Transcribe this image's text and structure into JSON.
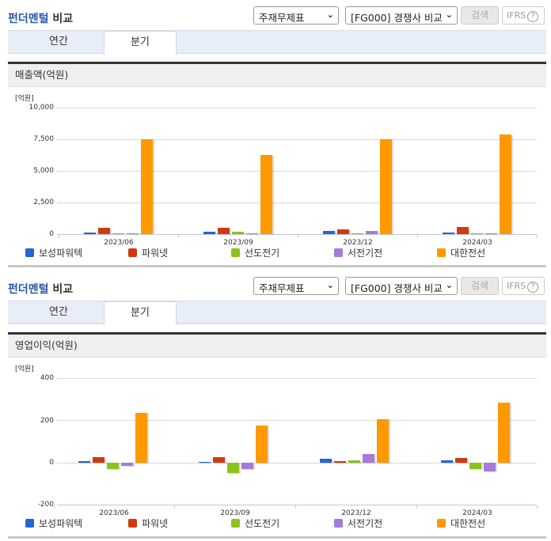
{
  "sections": [
    {
      "title_blue": "펀더멘털",
      "title_rest": " 비교",
      "select1": "주재무제표",
      "select2": "[FG000] 경쟁사 비교",
      "search_label": "검색",
      "ifrs_label": "IFRS",
      "ifrs_help": "?",
      "tabs": [
        {
          "label": "연간",
          "active": false
        },
        {
          "label": "분기",
          "active": true
        }
      ],
      "chart_title": "매출액(억원)",
      "unit": "[억원]",
      "yticks": [
        "10,000",
        "7,500",
        "5,000",
        "2,500",
        "0"
      ],
      "xlabels": [
        "2023/06",
        "2023/09",
        "2023/12",
        "2024/03"
      ]
    },
    {
      "title_blue": "펀더멘털",
      "title_rest": " 비교",
      "select1": "주재무제표",
      "select2": "[FG000] 경쟁사 비교",
      "search_label": "검색",
      "ifrs_label": "IFRS",
      "ifrs_help": "?",
      "tabs": [
        {
          "label": "연간",
          "active": false
        },
        {
          "label": "분기",
          "active": true
        }
      ],
      "chart_title": "영업이익(억원)",
      "unit": "[억원]",
      "yticks": [
        "400",
        "200",
        "0",
        "-200"
      ],
      "xlabels": [
        "2023/06",
        "2023/09",
        "2023/12",
        "2024/03"
      ]
    }
  ],
  "legend": [
    {
      "name": "보성파워텍",
      "color": "#2366d1"
    },
    {
      "name": "파워넷",
      "color": "#d13a10"
    },
    {
      "name": "선도전기",
      "color": "#8cc21c"
    },
    {
      "name": "서전기전",
      "color": "#a57bd8"
    },
    {
      "name": "대한전선",
      "color": "#ff9900"
    }
  ],
  "chart_data": [
    {
      "type": "bar",
      "title": "매출액(억원)",
      "ylabel": "[억원]",
      "xlabel": "",
      "categories": [
        "2023/06",
        "2023/09",
        "2023/12",
        "2024/03"
      ],
      "ylim": [
        0,
        10000
      ],
      "yticks": [
        0,
        2500,
        5000,
        7500,
        10000
      ],
      "grid": true,
      "legend_position": "bottom",
      "series": [
        {
          "name": "보성파워텍",
          "values": [
            150,
            170,
            230,
            150
          ]
        },
        {
          "name": "파워넷",
          "values": [
            480,
            480,
            380,
            560
          ]
        },
        {
          "name": "선도전기",
          "values": [
            90,
            180,
            20,
            30
          ]
        },
        {
          "name": "서전기전",
          "values": [
            30,
            30,
            230,
            30
          ]
        },
        {
          "name": "대한전선",
          "values": [
            7500,
            6250,
            7500,
            7850
          ]
        }
      ]
    },
    {
      "type": "bar",
      "title": "영업이익(억원)",
      "ylabel": "[억원]",
      "xlabel": "",
      "categories": [
        "2023/06",
        "2023/09",
        "2023/12",
        "2024/03"
      ],
      "ylim": [
        -200,
        400
      ],
      "yticks": [
        -200,
        0,
        200,
        400
      ],
      "grid": true,
      "legend_position": "bottom",
      "series": [
        {
          "name": "보성파워텍",
          "values": [
            8,
            3,
            18,
            10
          ]
        },
        {
          "name": "파워넷",
          "values": [
            28,
            28,
            8,
            23
          ]
        },
        {
          "name": "선도전기",
          "values": [
            -30,
            -50,
            10,
            -30
          ]
        },
        {
          "name": "서전기전",
          "values": [
            -15,
            -30,
            42,
            -40
          ]
        },
        {
          "name": "대한전선",
          "values": [
            237,
            175,
            207,
            285
          ]
        }
      ]
    }
  ]
}
